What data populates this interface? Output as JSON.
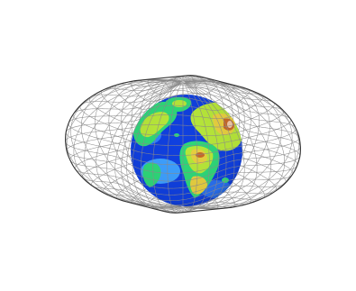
{
  "figure": {
    "description_free": true,
    "subject": "wireframe-surface-around-globe",
    "colors": {
      "mesh": "#8a8a8a",
      "mesh_outline": "#333333",
      "background": "#ffffff",
      "ocean_deep": "#0a2fd8",
      "ocean_shallow": "#3ea0ff",
      "lowland": "#2fd87a",
      "plain": "#b8e83a",
      "highland": "#e8d040",
      "mountain": "#c86a2a",
      "peak": "#f2c8a8"
    }
  }
}
